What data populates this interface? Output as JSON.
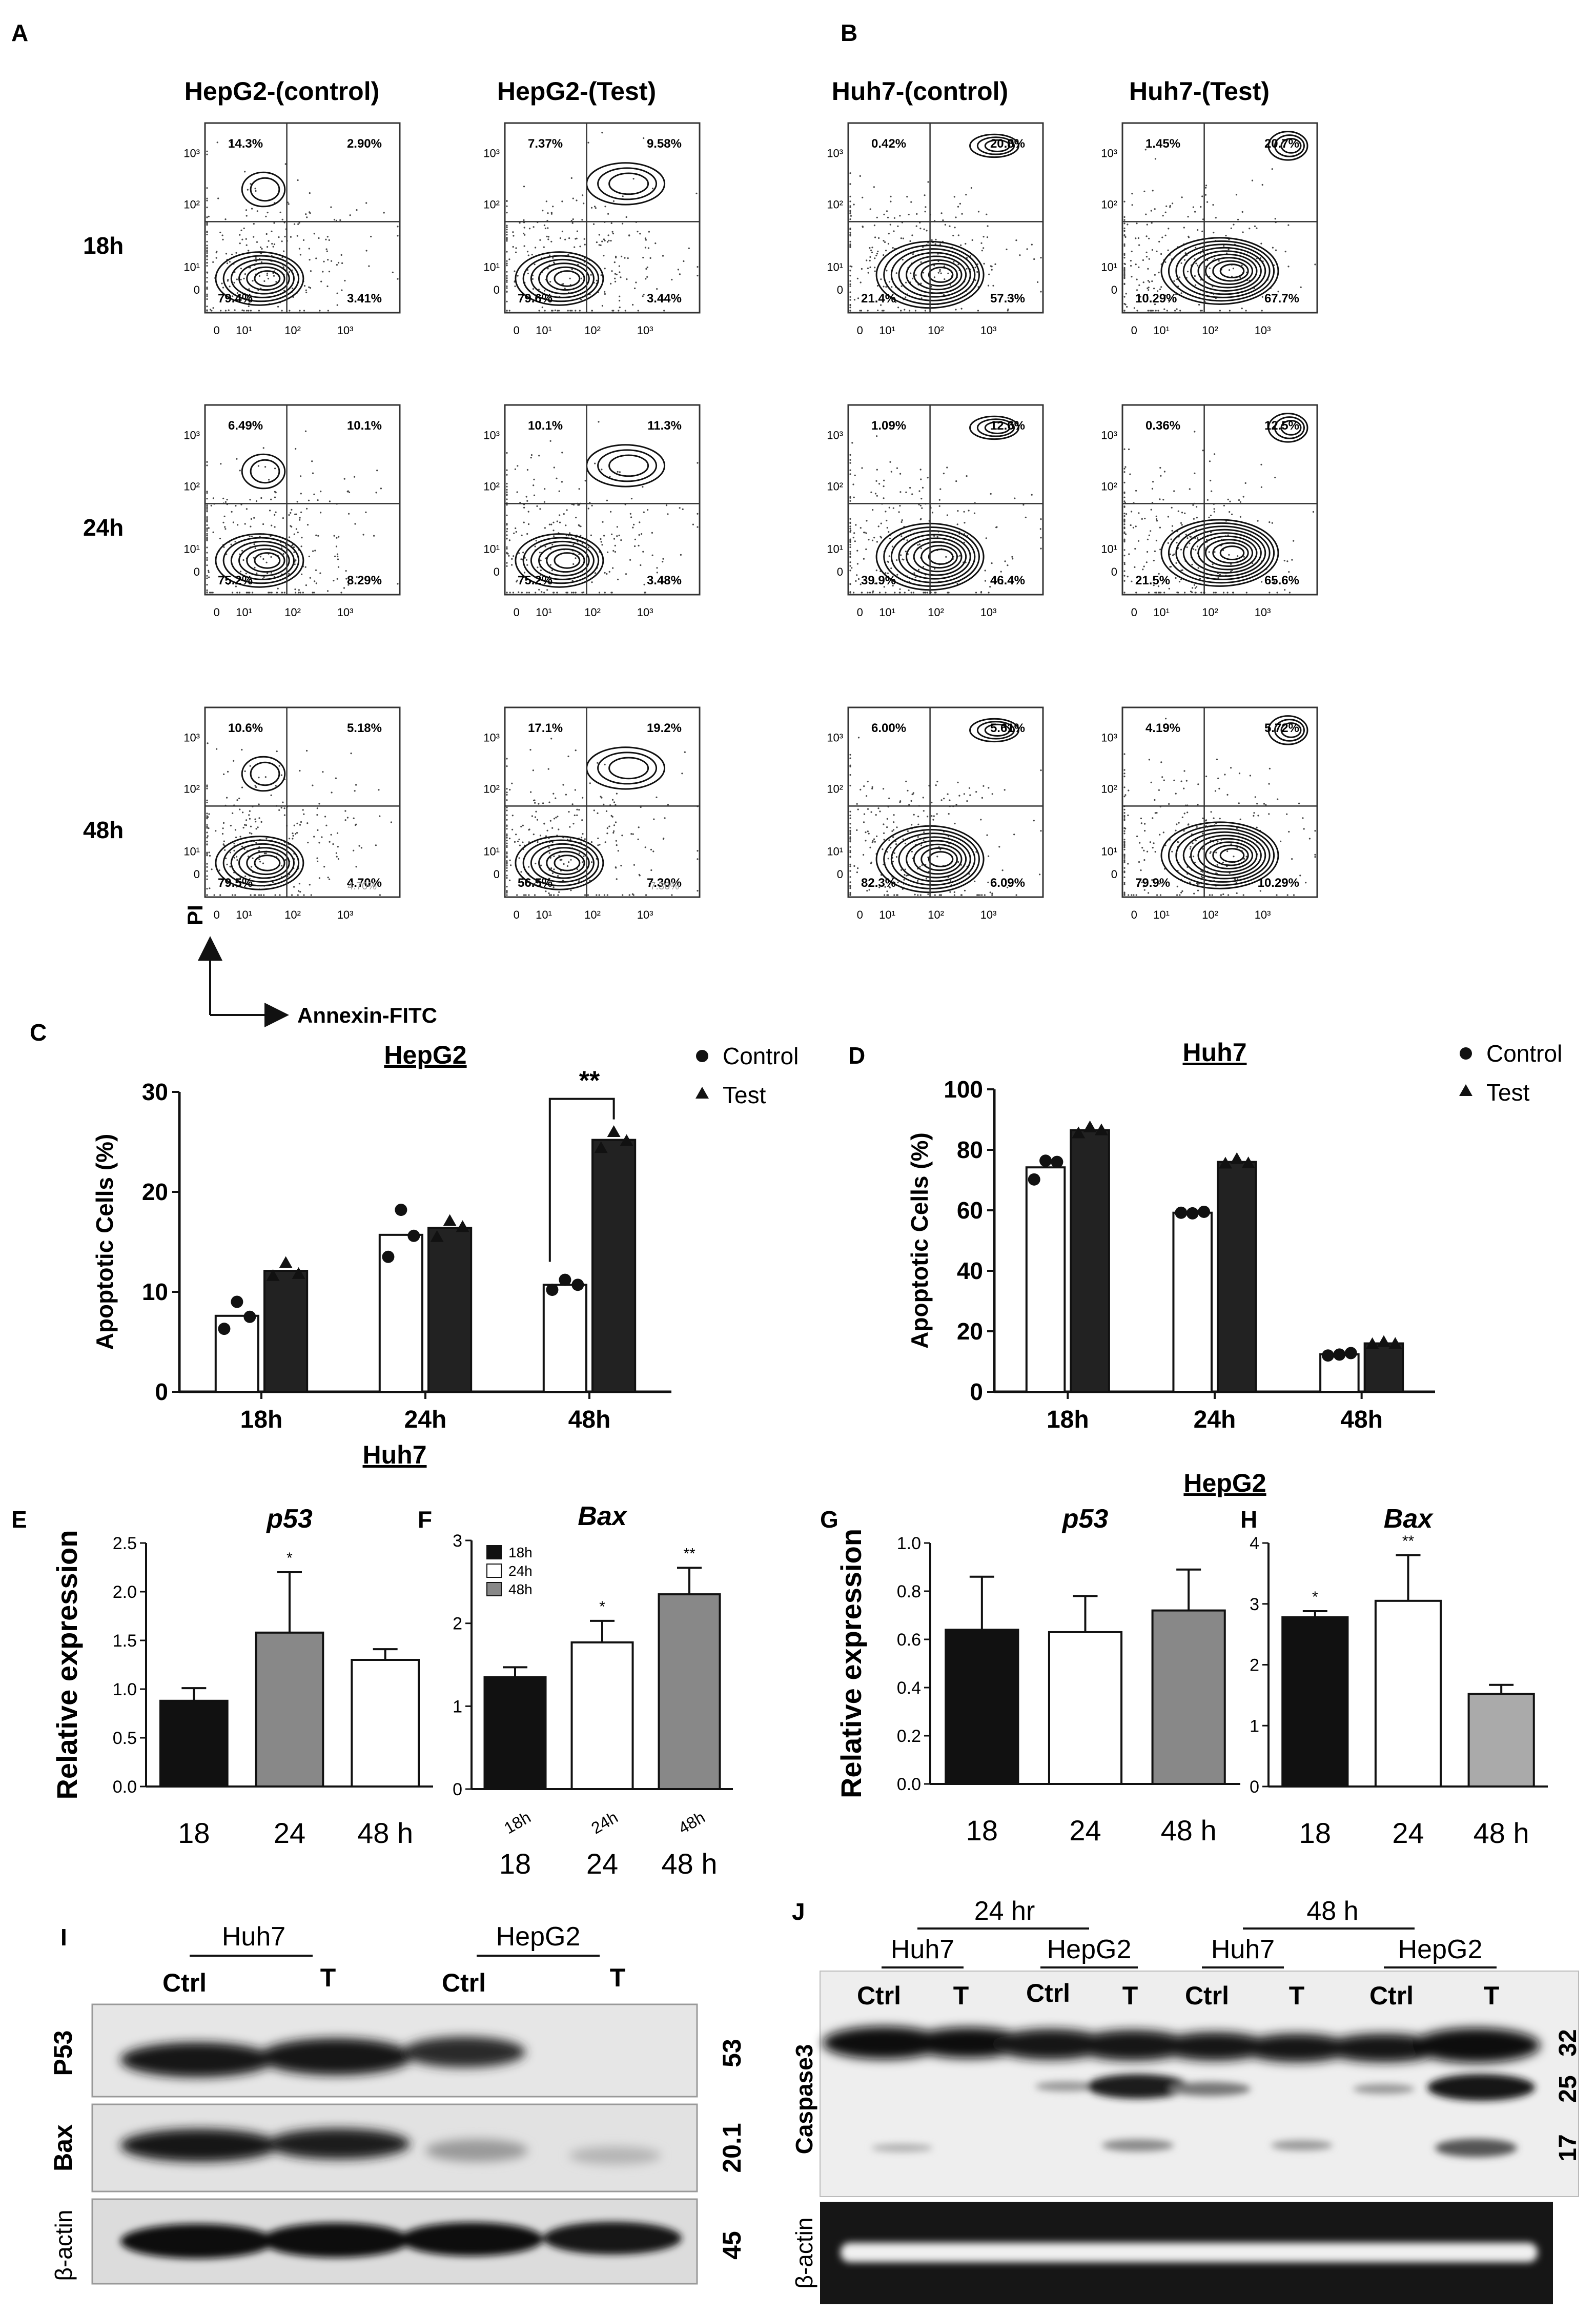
{
  "panel_letters": {
    "A": "A",
    "B": "B",
    "C": "C",
    "D": "D",
    "E": "E",
    "F": "F",
    "G": "G",
    "H": "H",
    "I": "I",
    "J": "J"
  },
  "flow": {
    "columns": [
      "HepG2-(control)",
      "HepG2-(Test)",
      "Huh7-(control)",
      "Huh7-(Test)"
    ],
    "rows": [
      "18h",
      "24h",
      "48h"
    ],
    "axis_ticks": {
      "y": [
        "10³",
        "10²",
        "10¹",
        "0"
      ],
      "x": [
        "0",
        "10¹",
        "10²",
        "10³"
      ]
    },
    "y_axis_label": "PI",
    "x_axis_label": "Annexin-FITC",
    "faint_48h": [
      "4.70%",
      "7.30%"
    ],
    "plots": [
      [
        {
          "ul": "14.3%",
          "ur": "2.90%",
          "ll": "79.4%",
          "lr": "3.41%"
        },
        {
          "ul": "7.37%",
          "ur": "9.58%",
          "ll": "79.6%",
          "lr": "3.44%"
        },
        {
          "ul": "0.42%",
          "ur": "20.8%",
          "ll": "21.4%",
          "lr": "57.3%"
        },
        {
          "ul": "1.45%",
          "ur": "20.7%",
          "ll": "10.29%",
          "lr": "67.7%"
        }
      ],
      [
        {
          "ul": "6.49%",
          "ur": "10.1%",
          "ll": "75.2%",
          "lr": "8.29%"
        },
        {
          "ul": "10.1%",
          "ur": "11.3%",
          "ll": "75.2%",
          "lr": "3.48%"
        },
        {
          "ul": "1.09%",
          "ur": "12.6%",
          "ll": "39.9%",
          "lr": "46.4%"
        },
        {
          "ul": "0.36%",
          "ur": "12.5%",
          "ll": "21.5%",
          "lr": "65.6%"
        }
      ],
      [
        {
          "ul": "10.6%",
          "ur": "5.18%",
          "ll": "79.5%",
          "lr": "4.70%"
        },
        {
          "ul": "17.1%",
          "ur": "19.2%",
          "ll": "56.5%",
          "lr": "7.30%"
        },
        {
          "ul": "6.00%",
          "ur": "5.61%",
          "ll": "82.3%",
          "lr": "6.09%"
        },
        {
          "ul": "4.19%",
          "ur": "5.72%",
          "ll": "79.9%",
          "lr": "10.29%"
        }
      ]
    ]
  },
  "chart_data": [
    {
      "id": "C",
      "type": "bar",
      "title": "HepG2",
      "ylabel": "Apoptotic Cells (%)",
      "xlabel": "",
      "ylim": [
        0,
        30
      ],
      "yticks": [
        "0",
        "10",
        "20",
        "30"
      ],
      "categories": [
        "18h",
        "24h",
        "48h"
      ],
      "legend": [
        "Control",
        "Test"
      ],
      "series": [
        {
          "name": "Control",
          "values": [
            7.6,
            15.7,
            10.7
          ],
          "points": [
            [
              6.3,
              9.0,
              7.5
            ],
            [
              13.5,
              18.2,
              15.6
            ],
            [
              10.2,
              11.2,
              10.7
            ]
          ]
        },
        {
          "name": "Test",
          "values": [
            12.1,
            16.4,
            25.2
          ],
          "points": [
            [
              11.6,
              12.9,
              11.8
            ],
            [
              15.5,
              17.1,
              16.5
            ],
            [
              24.4,
              26.0,
              25.1
            ]
          ]
        }
      ],
      "significance": "**"
    },
    {
      "id": "D",
      "type": "bar",
      "title": "Huh7",
      "ylabel": "Apoptotic Cells (%)",
      "xlabel": "",
      "ylim": [
        0,
        100
      ],
      "yticks": [
        "0",
        "20",
        "40",
        "60",
        "80",
        "100"
      ],
      "categories": [
        "18h",
        "24h",
        "48h"
      ],
      "legend": [
        "Control",
        "Test"
      ],
      "series": [
        {
          "name": "Control",
          "values": [
            74.2,
            59.2,
            12.4
          ],
          "points": [
            [
              70.2,
              76.4,
              76.0
            ],
            [
              59.2,
              59.0,
              59.5
            ],
            [
              12.0,
              12.3,
              12.8
            ]
          ]
        },
        {
          "name": "Test",
          "values": [
            86.5,
            76.0,
            16.0
          ],
          "points": [
            [
              85.5,
              87.5,
              86.5
            ],
            [
              75.5,
              77.0,
              75.6
            ],
            [
              15.8,
              16.5,
              15.9
            ]
          ]
        }
      ]
    },
    {
      "id": "E",
      "type": "bar",
      "group": "Huh7",
      "title": "p53",
      "ylabel": "Relative expression",
      "ylim": [
        0,
        2.5
      ],
      "yticks": [
        "0.0",
        "0.5",
        "1.0",
        "1.5",
        "2.0",
        "2.5"
      ],
      "categories": [
        "18",
        "24",
        "48 h"
      ],
      "values": [
        0.88,
        1.58,
        1.3
      ],
      "errors": [
        0.13,
        0.62,
        0.11
      ],
      "colors": [
        "#111111",
        "#888888",
        "#ffffff"
      ],
      "significance": [
        "",
        "*",
        ""
      ]
    },
    {
      "id": "F",
      "type": "bar",
      "group": "Huh7",
      "title": "Bax",
      "ylabel": "",
      "ylim": [
        0,
        3
      ],
      "yticks": [
        "0",
        "1",
        "2",
        "3"
      ],
      "categories": [
        "18",
        "24",
        "48 h"
      ],
      "tilted_labels": [
        "18h",
        "24h",
        "48h"
      ],
      "legend": [
        "18h",
        "24h",
        "48h"
      ],
      "values": [
        1.35,
        1.77,
        2.35
      ],
      "errors": [
        0.12,
        0.26,
        0.32
      ],
      "colors": [
        "#111111",
        "#ffffff",
        "#888888"
      ],
      "significance": [
        "",
        "*",
        "**"
      ]
    },
    {
      "id": "G",
      "type": "bar",
      "group": "HepG2",
      "title": "p53",
      "ylabel": "Relative expression",
      "ylim": [
        0,
        1.0
      ],
      "yticks": [
        "0.0",
        "0.2",
        "0.4",
        "0.6",
        "0.8",
        "1.0"
      ],
      "categories": [
        "18",
        "24",
        "48 h"
      ],
      "values": [
        0.64,
        0.63,
        0.72
      ],
      "errors": [
        0.22,
        0.15,
        0.17
      ],
      "colors": [
        "#111111",
        "#ffffff",
        "#888888"
      ],
      "significance": [
        "",
        "",
        ""
      ]
    },
    {
      "id": "H",
      "type": "bar",
      "group": "HepG2",
      "title": "Bax",
      "ylabel": "",
      "ylim": [
        0,
        4
      ],
      "yticks": [
        "0",
        "1",
        "2",
        "3",
        "4"
      ],
      "categories": [
        "18",
        "24",
        "48 h"
      ],
      "values": [
        2.78,
        3.05,
        1.52
      ],
      "errors": [
        0.1,
        0.75,
        0.15
      ],
      "colors": [
        "#111111",
        "#ffffff",
        "#aaaaaa"
      ],
      "significance": [
        "*",
        "**",
        ""
      ]
    }
  ],
  "group_titles": {
    "huh7": "Huh7",
    "hepg2": "HepG2"
  },
  "blot_i": {
    "cell_lines": [
      "Huh7",
      "HepG2"
    ],
    "lanes": [
      "Ctrl",
      "T",
      "Ctrl",
      "T"
    ],
    "rows": [
      {
        "protein": "P53",
        "kda": "53"
      },
      {
        "protein": "Bax",
        "kda": "20.1"
      },
      {
        "protein": "β-actin",
        "kda": "45"
      }
    ]
  },
  "blot_j": {
    "timepoints": [
      "24 hr",
      "48 h"
    ],
    "cell_lines": [
      "Huh7",
      "HepG2",
      "Huh7",
      "HepG2"
    ],
    "lanes": [
      "Ctrl",
      "T",
      "Ctrl",
      "T",
      "Ctrl",
      "T",
      "Ctrl",
      "T"
    ],
    "protein": "Caspase3",
    "kda": [
      "32",
      "25",
      "17"
    ],
    "loading": "β-actin"
  }
}
